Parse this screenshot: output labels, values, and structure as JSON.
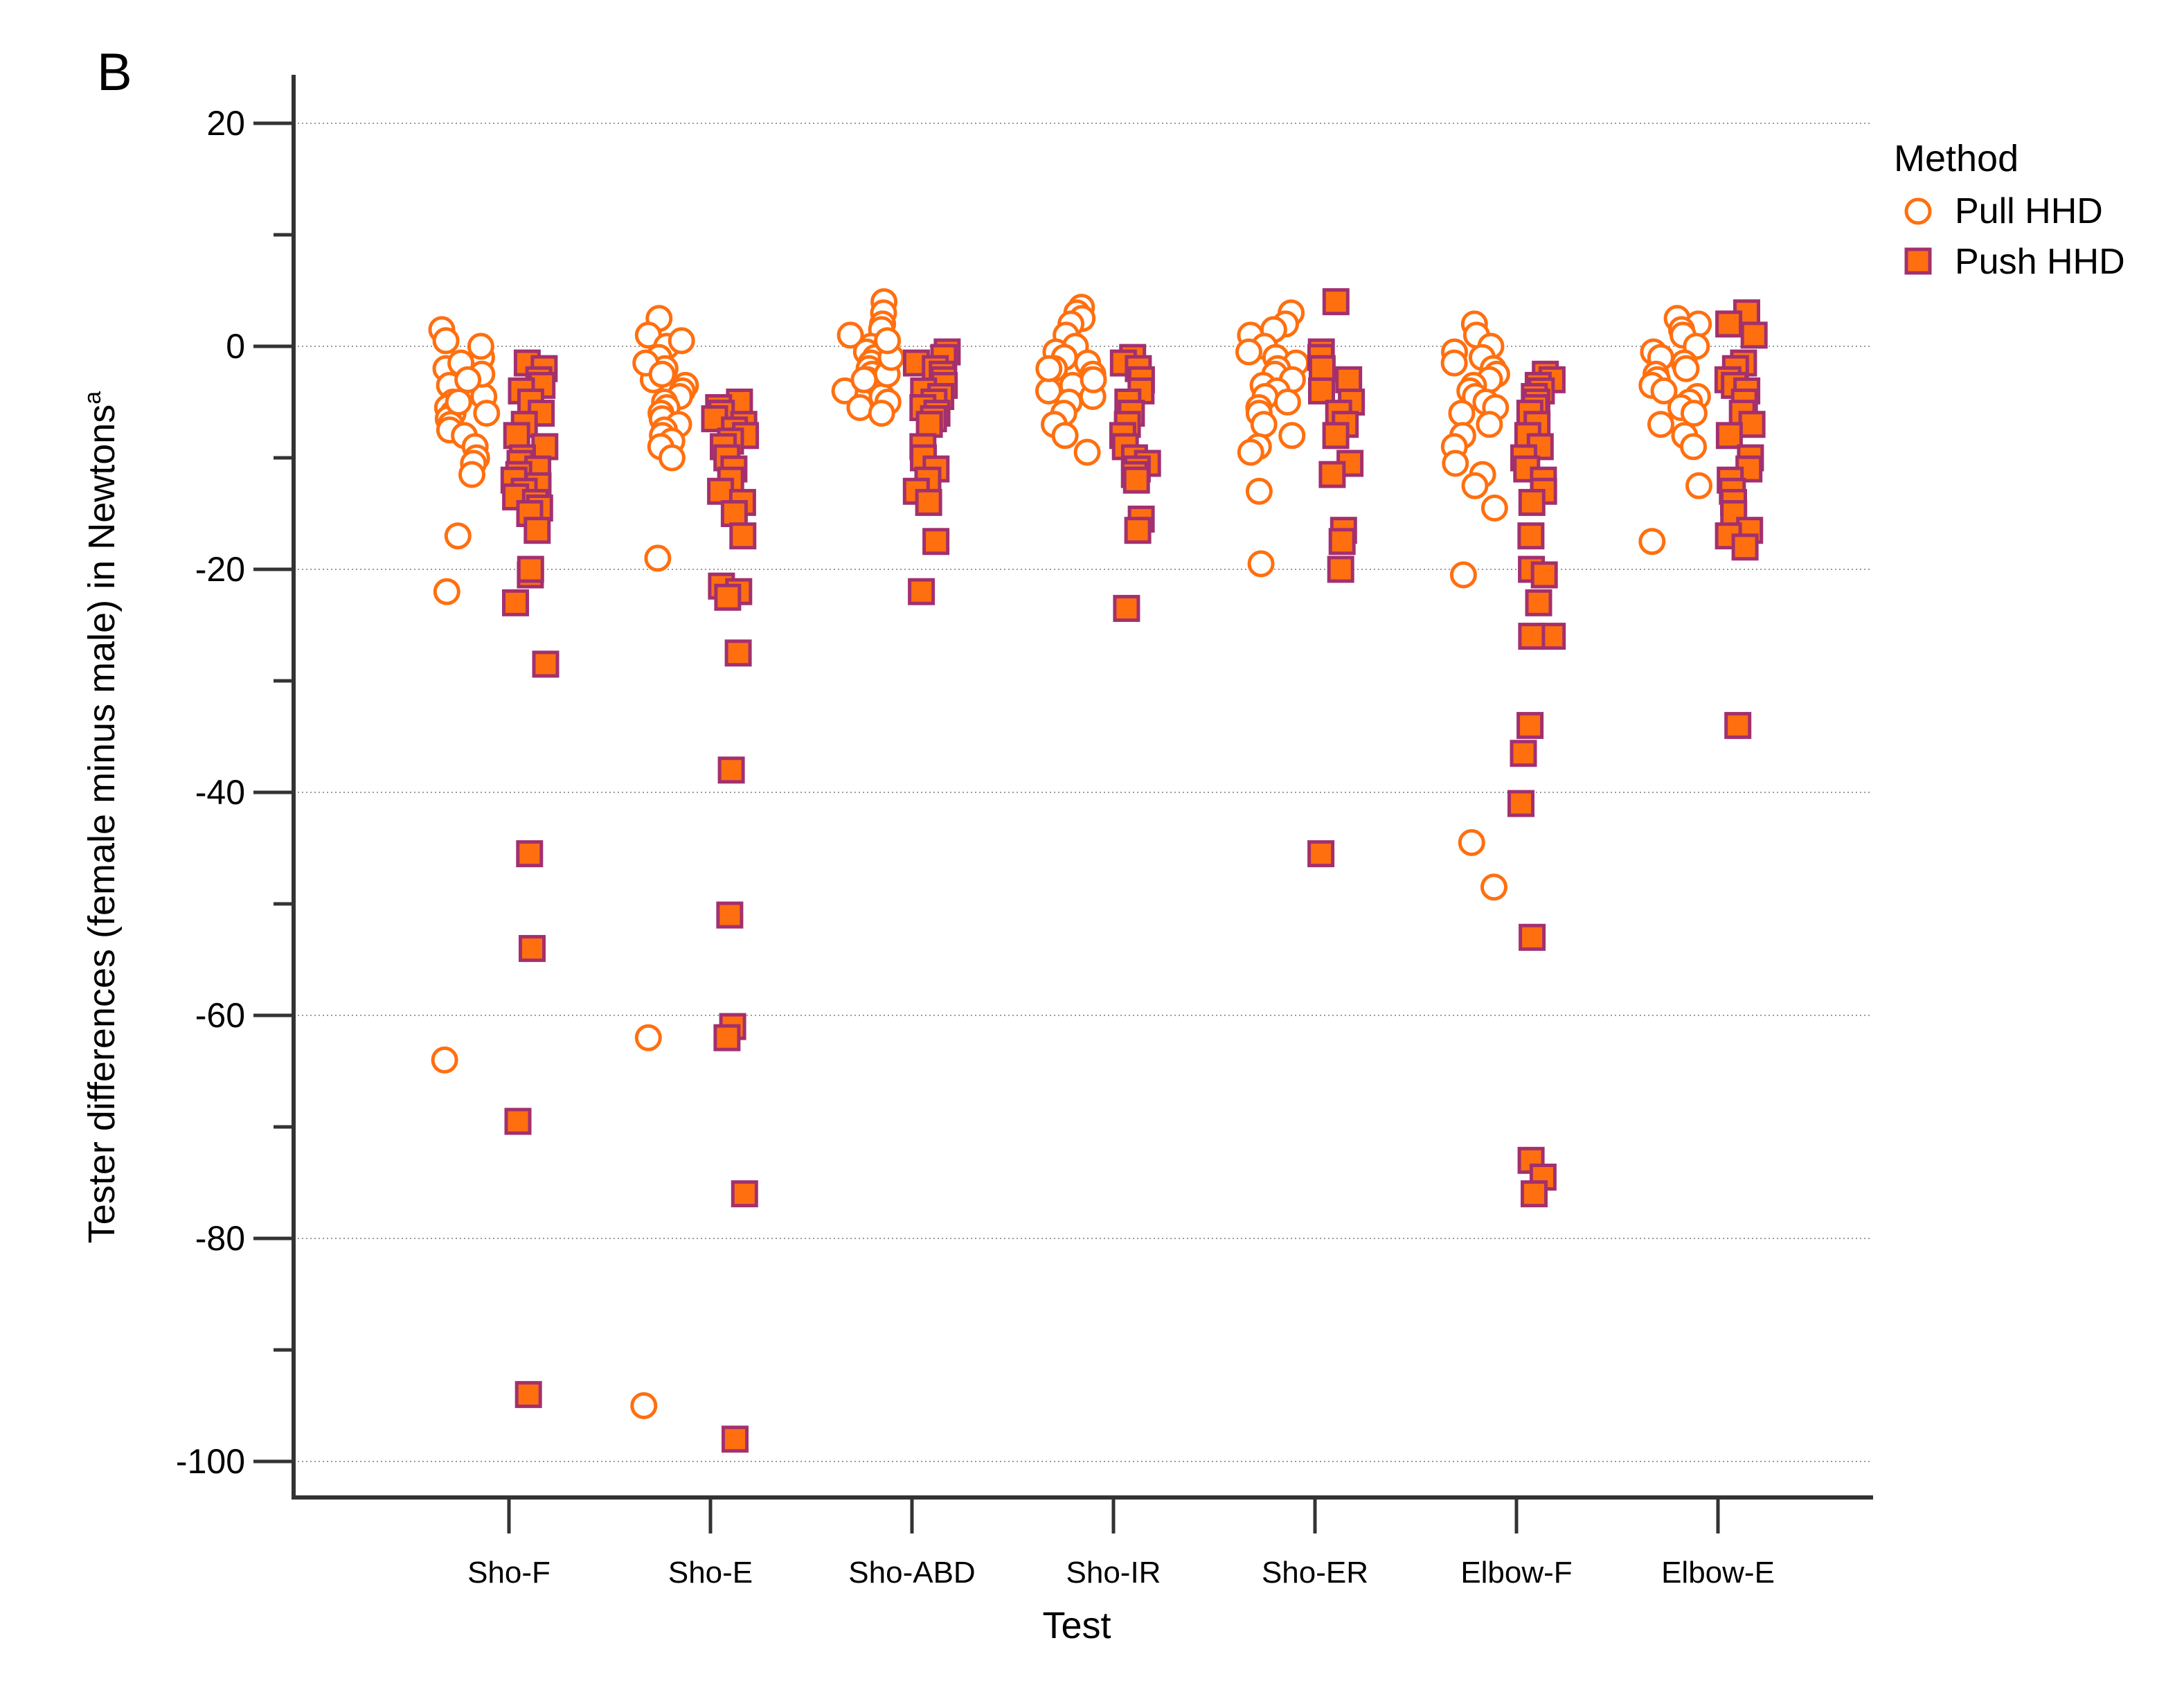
{
  "panel_label": "B",
  "chart_data": {
    "type": "scatter",
    "title": "",
    "xlabel": "Test",
    "ylabel_main": "Tester differences (female minus male) in Newtons",
    "ylabel_superscript": "a",
    "ylim": [
      -102,
      22
    ],
    "yticks": [
      20,
      0,
      -20,
      -40,
      -60,
      -80,
      -100
    ],
    "ytick_labels": [
      "20",
      "0",
      "-20",
      "-40",
      "-60",
      "-80",
      "-100"
    ],
    "gridlines": [
      20,
      0,
      -20,
      -40,
      -60,
      -80,
      -100
    ],
    "categories": [
      "Sho-F",
      "Sho-E",
      "Sho-ABD",
      "Sho-IR",
      "Sho-ER",
      "Elbow-F",
      "Elbow-E"
    ],
    "legend": {
      "title": "Method",
      "position": "top-right",
      "entries": [
        {
          "name": "Pull HHD",
          "marker": "open-circle"
        },
        {
          "name": "Push HHD",
          "marker": "filled-square"
        }
      ]
    },
    "colors": {
      "pull_stroke": "#FF6F0F",
      "push_fill": "#FF6F0F",
      "push_stroke": "#A3306E",
      "axis": "#333333",
      "grid": "#9A9A9A"
    },
    "series": [
      {
        "name": "Pull HHD",
        "marker": "open-circle",
        "data": [
          [
            1.5,
            -1,
            -2,
            -3,
            -3.5,
            -4,
            -4.5,
            -5,
            -5.5,
            -6,
            -6.5,
            -7,
            -7.5,
            -8,
            -9,
            -10,
            -10.5,
            -11.5,
            -2.5,
            -1.5,
            0,
            0.5,
            -3,
            -5,
            -6,
            -17,
            -22,
            -64
          ],
          [
            2.5,
            1,
            0,
            -1,
            -2,
            -3,
            -3.5,
            -4,
            -4.5,
            -5,
            -5.5,
            -6,
            -6.5,
            -7,
            -7.5,
            -8,
            -8.5,
            -9,
            -10,
            -1.5,
            -2.5,
            0.5,
            -19,
            -62,
            -95
          ],
          [
            4,
            3,
            2,
            1.5,
            1,
            0,
            -0.5,
            -1,
            -1.5,
            -2,
            -2.5,
            -3,
            -3.5,
            -4,
            -4.5,
            -5,
            -5.5,
            -6,
            -2.5,
            -3,
            -1,
            0.5
          ],
          [
            3.5,
            3,
            2.5,
            2,
            1,
            0,
            -0.5,
            -1,
            -1.5,
            -2,
            -2.5,
            -3,
            -3.5,
            -4,
            -4.5,
            -5,
            -6,
            -7,
            -8,
            -9.5,
            -2,
            -3
          ],
          [
            3,
            2,
            1.5,
            1,
            0,
            -0.5,
            -1,
            -1.5,
            -2,
            -2.5,
            -3,
            -3.5,
            -4,
            -4.5,
            -5,
            -5.5,
            -6,
            -7,
            -8,
            -9,
            -9.5,
            -13,
            -19.5
          ],
          [
            2,
            1,
            0,
            -0.5,
            -1,
            -1.5,
            -2,
            -2.5,
            -3,
            -3.5,
            -4,
            -4.5,
            -5,
            -5.5,
            -6,
            -7,
            -8,
            -9,
            -10.5,
            -11.5,
            -12.5,
            -14.5,
            -20.5,
            -44.5,
            -48.5
          ],
          [
            2.5,
            2,
            1.5,
            1,
            0,
            -0.5,
            -1,
            -1.5,
            -2,
            -2.5,
            -3,
            -3.5,
            -4,
            -4.5,
            -5,
            -5.5,
            -6,
            -7,
            -8,
            -9,
            -12.5,
            -17.5
          ]
        ]
      },
      {
        "name": "Push HHD",
        "marker": "filled-square",
        "data": [
          [
            -1.5,
            -2,
            -3,
            -3.5,
            -4,
            -5,
            -6,
            -7,
            -8,
            -9,
            -10,
            -10.5,
            -11,
            -11.5,
            -12,
            -12.5,
            -13,
            -13.5,
            -14,
            -14.5,
            -15,
            -16.5,
            -20.5,
            -20,
            -23,
            -28.5,
            -45.5,
            -54,
            -69.5,
            -94
          ],
          [
            -5,
            -5.5,
            -6,
            -6.5,
            -7,
            -7.5,
            -8,
            -8.5,
            -9,
            -10,
            -11,
            -12,
            -13,
            -14,
            -15,
            -17,
            -21.5,
            -22,
            -22.5,
            -27.5,
            -38,
            -51,
            -61,
            -62,
            -76,
            -98
          ],
          [
            -0.5,
            -1,
            -1.5,
            -2,
            -2.5,
            -3,
            -3.5,
            -4,
            -4.5,
            -5,
            -5.5,
            -6,
            -6.5,
            -7,
            -9,
            -10,
            -11,
            -12,
            -13,
            -14,
            -17.5,
            -22
          ],
          [
            -1,
            -1.5,
            -2,
            -3,
            -4,
            -5,
            -6,
            -7,
            -8,
            -9,
            -10,
            -10.5,
            -11,
            -11.5,
            -12,
            -15.5,
            -16.5,
            -23.5
          ],
          [
            4,
            -0.5,
            -1,
            -2,
            -3,
            -4,
            -5,
            -6,
            -7,
            -8,
            -10.5,
            -11.5,
            -16.5,
            -17.5,
            -20,
            -45.5
          ],
          [
            -2.5,
            -3,
            -3.5,
            -4,
            -4.5,
            -5,
            -5.5,
            -6,
            -7,
            -8,
            -9,
            -10,
            -11,
            -12,
            -13,
            -14,
            -17,
            -20,
            -20.5,
            -23,
            -26,
            -26,
            -34,
            -36.5,
            -41,
            -53,
            -73,
            -74.5,
            -76
          ],
          [
            3,
            2,
            1,
            -1.5,
            -2,
            -3,
            -3.5,
            -4,
            -5,
            -6,
            -7,
            -8,
            -10,
            -11,
            -12,
            -13,
            -14,
            -15,
            -16.5,
            -17,
            -18,
            -34
          ]
        ]
      }
    ]
  }
}
